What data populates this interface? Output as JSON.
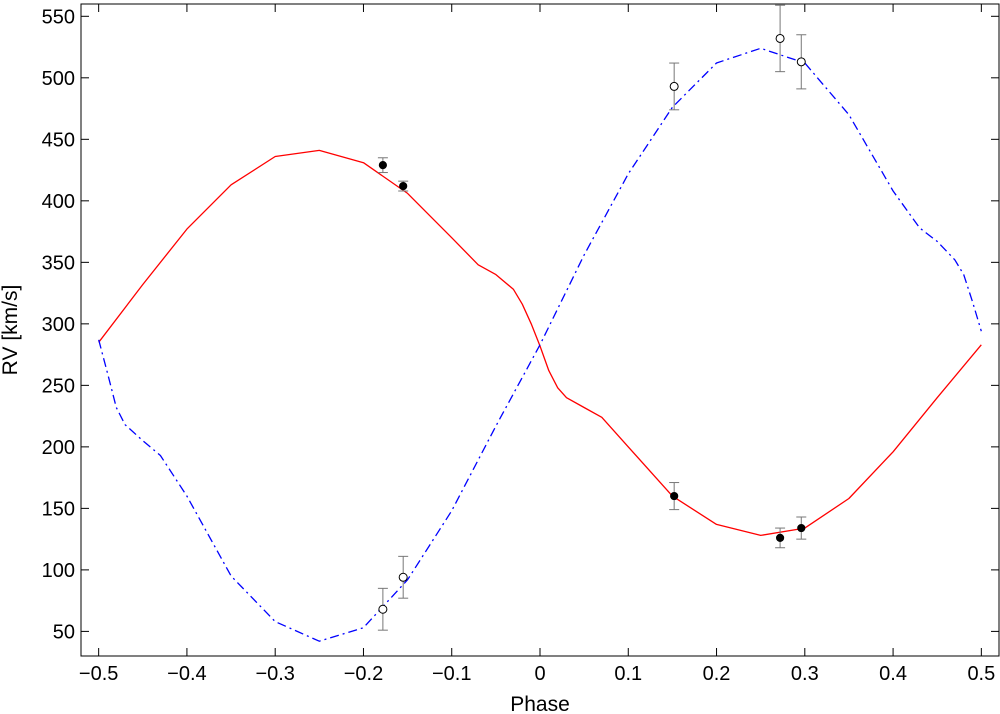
{
  "chart_data": {
    "type": "line",
    "title": "",
    "xlabel": "Phase",
    "ylabel": "RV [km/s]",
    "xlim": [
      -0.52,
      0.52
    ],
    "ylim": [
      30,
      560
    ],
    "x_ticks": [
      "−0.5",
      "−0.4",
      "−0.3",
      "−0.2",
      "−0.1",
      "0",
      "0.1",
      "0.2",
      "0.3",
      "0.4",
      "0.5"
    ],
    "y_ticks": [
      "50",
      "100",
      "150",
      "200",
      "250",
      "300",
      "350",
      "400",
      "450",
      "500",
      "550"
    ],
    "grid": false,
    "legend": "none",
    "series": [
      {
        "style": "solid",
        "color": "#ff0000",
        "x": [
          -0.5,
          -0.45,
          -0.4,
          -0.35,
          -0.3,
          -0.25,
          -0.2,
          -0.15,
          -0.1,
          -0.07,
          -0.05,
          -0.03,
          -0.02,
          -0.01,
          0,
          0.01,
          0.02,
          0.03,
          0.05,
          0.07,
          0.1,
          0.15,
          0.2,
          0.25,
          0.3,
          0.35,
          0.4,
          0.45,
          0.5
        ],
        "y": [
          285,
          332,
          377,
          413,
          436,
          441,
          431,
          406,
          370,
          348,
          340,
          328,
          316,
          300,
          282,
          262,
          248,
          240,
          232,
          224,
          200,
          160,
          137,
          128,
          134,
          158,
          196,
          240,
          283
        ]
      },
      {
        "style": "dashdot",
        "color": "#0000ff",
        "x": [
          -0.5,
          -0.49,
          -0.48,
          -0.47,
          -0.45,
          -0.43,
          -0.4,
          -0.35,
          -0.3,
          -0.25,
          -0.2,
          -0.15,
          -0.1,
          -0.05,
          0,
          0.05,
          0.1,
          0.15,
          0.2,
          0.25,
          0.3,
          0.35,
          0.4,
          0.43,
          0.45,
          0.47,
          0.48,
          0.49,
          0.5
        ],
        "y": [
          287,
          260,
          232,
          218,
          205,
          193,
          160,
          95,
          58,
          42,
          53,
          92,
          148,
          217,
          283,
          356,
          422,
          476,
          512,
          524,
          512,
          470,
          408,
          378,
          367,
          352,
          340,
          318,
          294
        ]
      },
      {
        "style": "markers-filled",
        "color": "#000000",
        "x": [
          -0.178,
          -0.155,
          0.152,
          0.272,
          0.296
        ],
        "y": [
          429,
          412,
          160,
          126,
          134
        ],
        "err": [
          6,
          4,
          11,
          8,
          9
        ]
      },
      {
        "style": "markers-open",
        "color": "#000000",
        "x": [
          -0.178,
          -0.155,
          0.152,
          0.272,
          0.296
        ],
        "y": [
          68,
          94,
          493,
          532,
          513
        ],
        "err": [
          17,
          17,
          19,
          27,
          22
        ]
      }
    ]
  }
}
